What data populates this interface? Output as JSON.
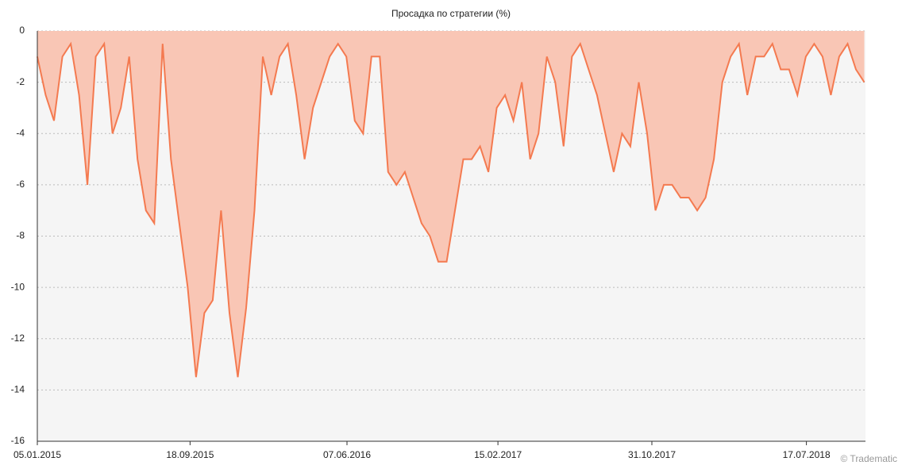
{
  "chart_data": {
    "type": "area",
    "title": "Просадка по стратегии (%)",
    "watermark": "© Tradematic",
    "x": [
      "2015-01-05",
      "2015-01-19",
      "2015-02-02",
      "2015-02-16",
      "2015-03-02",
      "2015-03-16",
      "2015-03-30",
      "2015-04-13",
      "2015-04-27",
      "2015-05-11",
      "2015-05-25",
      "2015-06-08",
      "2015-06-22",
      "2015-07-06",
      "2015-07-20",
      "2015-08-03",
      "2015-08-17",
      "2015-08-31",
      "2015-09-14",
      "2015-09-28",
      "2015-10-12",
      "2015-10-26",
      "2015-11-09",
      "2015-11-23",
      "2015-12-07",
      "2015-12-21",
      "2016-01-04",
      "2016-01-18",
      "2016-02-01",
      "2016-02-15",
      "2016-02-29",
      "2016-03-14",
      "2016-03-28",
      "2016-04-11",
      "2016-04-25",
      "2016-05-09",
      "2016-05-23",
      "2016-06-06",
      "2016-06-20",
      "2016-07-04",
      "2016-07-18",
      "2016-08-01",
      "2016-08-15",
      "2016-08-29",
      "2016-09-12",
      "2016-09-26",
      "2016-10-10",
      "2016-10-24",
      "2016-11-07",
      "2016-11-21",
      "2016-12-05",
      "2016-12-19",
      "2017-01-02",
      "2017-01-16",
      "2017-01-30",
      "2017-02-13",
      "2017-02-27",
      "2017-03-13",
      "2017-03-27",
      "2017-04-10",
      "2017-04-24",
      "2017-05-08",
      "2017-05-22",
      "2017-06-05",
      "2017-06-19",
      "2017-07-03",
      "2017-07-17",
      "2017-07-31",
      "2017-08-14",
      "2017-08-28",
      "2017-09-11",
      "2017-09-25",
      "2017-10-09",
      "2017-10-23",
      "2017-11-06",
      "2017-11-20",
      "2017-12-04",
      "2017-12-18",
      "2018-01-01",
      "2018-01-15",
      "2018-01-29",
      "2018-02-12",
      "2018-02-26",
      "2018-03-12",
      "2018-03-26",
      "2018-04-09",
      "2018-04-23",
      "2018-05-07",
      "2018-05-21",
      "2018-06-04",
      "2018-06-18",
      "2018-07-02",
      "2018-07-16",
      "2018-07-30",
      "2018-08-13",
      "2018-08-27",
      "2018-09-10",
      "2018-09-24",
      "2018-10-08",
      "2018-10-22"
    ],
    "values": [
      -1,
      -2.5,
      -3.5,
      -1,
      -0.5,
      -2.5,
      -6,
      -1,
      -0.5,
      -4,
      -3,
      -1,
      -5,
      -7,
      -7.5,
      -0.5,
      -5,
      -7.5,
      -10,
      -13.5,
      -11,
      -10.5,
      -7,
      -11,
      -13.5,
      -10.8,
      -7,
      -1,
      -2.5,
      -1,
      -0.5,
      -2.5,
      -5,
      -3,
      -2,
      -1,
      -0.5,
      -1,
      -3.5,
      -4,
      -1,
      -1,
      -5.5,
      -6,
      -5.5,
      -6.5,
      -7.5,
      -8,
      -9,
      -9,
      -7,
      -5,
      -5,
      -4.5,
      -5.5,
      -3,
      -2.5,
      -3.5,
      -2,
      -5,
      -4,
      -1,
      -2,
      -4.5,
      -1,
      -0.5,
      -1.5,
      -2.5,
      -4,
      -5.5,
      -4,
      -4.5,
      -2,
      -4,
      -7,
      -6,
      -6,
      -6.5,
      -6.5,
      -7,
      -6.5,
      -5,
      -2,
      -1,
      -0.5,
      -2.5,
      -1,
      -1,
      -0.5,
      -1.5,
      -1.5,
      -2.5,
      -1,
      -0.5,
      -1,
      -2.5,
      -1,
      -0.5,
      -1.5,
      -2
    ],
    "color": "#f47a50",
    "fill": "#f9c6b5",
    "xlim": [
      "2015-01-05",
      "2018-10-24"
    ],
    "xticks": [
      {
        "value": "2015-01-05",
        "label": "05.01.2015"
      },
      {
        "value": "2015-09-18",
        "label": "18.09.2015"
      },
      {
        "value": "2016-06-07",
        "label": "07.06.2016"
      },
      {
        "value": "2017-02-15",
        "label": "15.02.2017"
      },
      {
        "value": "2017-10-31",
        "label": "31.10.2017"
      },
      {
        "value": "2018-07-17",
        "label": "17.07.2018"
      }
    ],
    "ylim": [
      -16,
      0
    ],
    "yticks": [
      0,
      -2,
      -4,
      -6,
      -8,
      -10,
      -12,
      -14,
      -16
    ],
    "grid": true
  }
}
